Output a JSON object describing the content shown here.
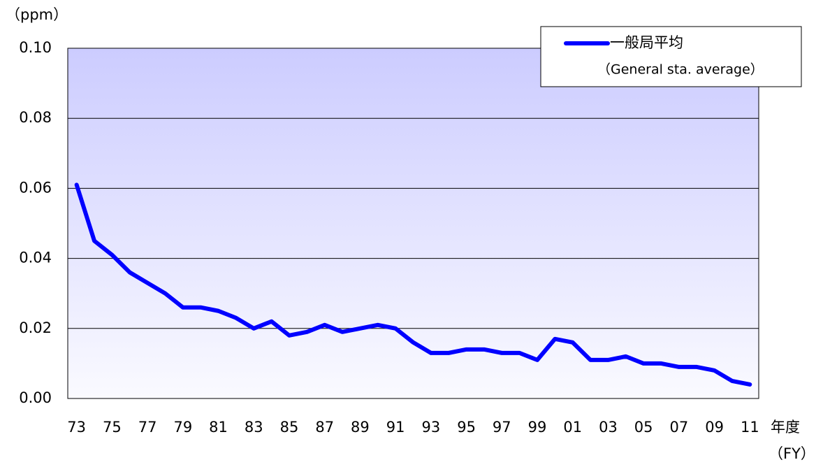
{
  "chart_data": {
    "type": "line",
    "y_label": "（ppm）",
    "x_label": "年度",
    "x_label_sub": "（FY）",
    "categories": [
      "73",
      null,
      "75",
      null,
      "77",
      null,
      "79",
      null,
      "81",
      null,
      "83",
      null,
      "85",
      null,
      "87",
      null,
      "89",
      null,
      "91",
      null,
      "93",
      null,
      "95",
      null,
      "97",
      null,
      "99",
      null,
      "01",
      null,
      "03",
      null,
      "05",
      null,
      "07",
      null,
      "09",
      null,
      "11"
    ],
    "series": [
      {
        "name": "一般局平均",
        "name_sub": "（General sta. average）",
        "color": "#0000ff",
        "values": [
          0.061,
          0.045,
          0.041,
          0.036,
          0.033,
          0.03,
          0.026,
          0.026,
          0.025,
          0.023,
          0.02,
          0.022,
          0.018,
          0.019,
          0.021,
          0.019,
          0.02,
          0.021,
          0.02,
          0.016,
          0.013,
          0.013,
          0.014,
          0.014,
          0.013,
          0.013,
          0.011,
          0.017,
          0.016,
          0.011,
          0.011,
          0.012,
          0.01,
          0.01,
          0.009,
          0.009,
          0.008,
          0.005,
          0.004
        ]
      }
    ],
    "ylim": [
      0,
      0.1
    ],
    "yticks": [
      {
        "value": 0,
        "label": "0.00"
      },
      {
        "value": 0.02,
        "label": "0.02"
      },
      {
        "value": 0.04,
        "label": "0.04"
      },
      {
        "value": 0.06,
        "label": "0.06"
      },
      {
        "value": 0.08,
        "label": "0.08"
      },
      {
        "value": 0.1,
        "label": "0.10"
      }
    ],
    "grid": true,
    "legend": "top-right"
  }
}
